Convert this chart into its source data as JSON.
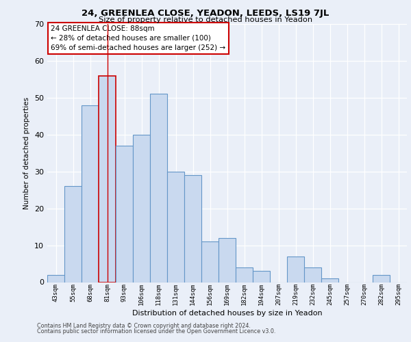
{
  "title_line1": "24, GREENLEA CLOSE, YEADON, LEEDS, LS19 7JL",
  "title_line2": "Size of property relative to detached houses in Yeadon",
  "xlabel": "Distribution of detached houses by size in Yeadon",
  "ylabel": "Number of detached properties",
  "categories": [
    "43sqm",
    "55sqm",
    "68sqm",
    "81sqm",
    "93sqm",
    "106sqm",
    "118sqm",
    "131sqm",
    "144sqm",
    "156sqm",
    "169sqm",
    "182sqm",
    "194sqm",
    "207sqm",
    "219sqm",
    "232sqm",
    "245sqm",
    "257sqm",
    "270sqm",
    "282sqm",
    "295sqm"
  ],
  "values": [
    2,
    26,
    48,
    56,
    37,
    40,
    51,
    30,
    29,
    11,
    12,
    4,
    3,
    0,
    7,
    4,
    1,
    0,
    0,
    2,
    0
  ],
  "bar_color": "#c9d9ef",
  "bar_edge_color": "#6496c8",
  "property_bar_index": 3,
  "property_bar_edge_color": "#cc0000",
  "annotation_line1": "24 GREENLEA CLOSE: 88sqm",
  "annotation_line2": "← 28% of detached houses are smaller (100)",
  "annotation_line3": "69% of semi-detached houses are larger (252) →",
  "ylim": [
    0,
    70
  ],
  "yticks": [
    0,
    10,
    20,
    30,
    40,
    50,
    60,
    70
  ],
  "bg_color": "#eaeff8",
  "vline_x": 3,
  "vline_color": "#cc0000",
  "footer_line1": "Contains HM Land Registry data © Crown copyright and database right 2024.",
  "footer_line2": "Contains public sector information licensed under the Open Government Licence v3.0."
}
